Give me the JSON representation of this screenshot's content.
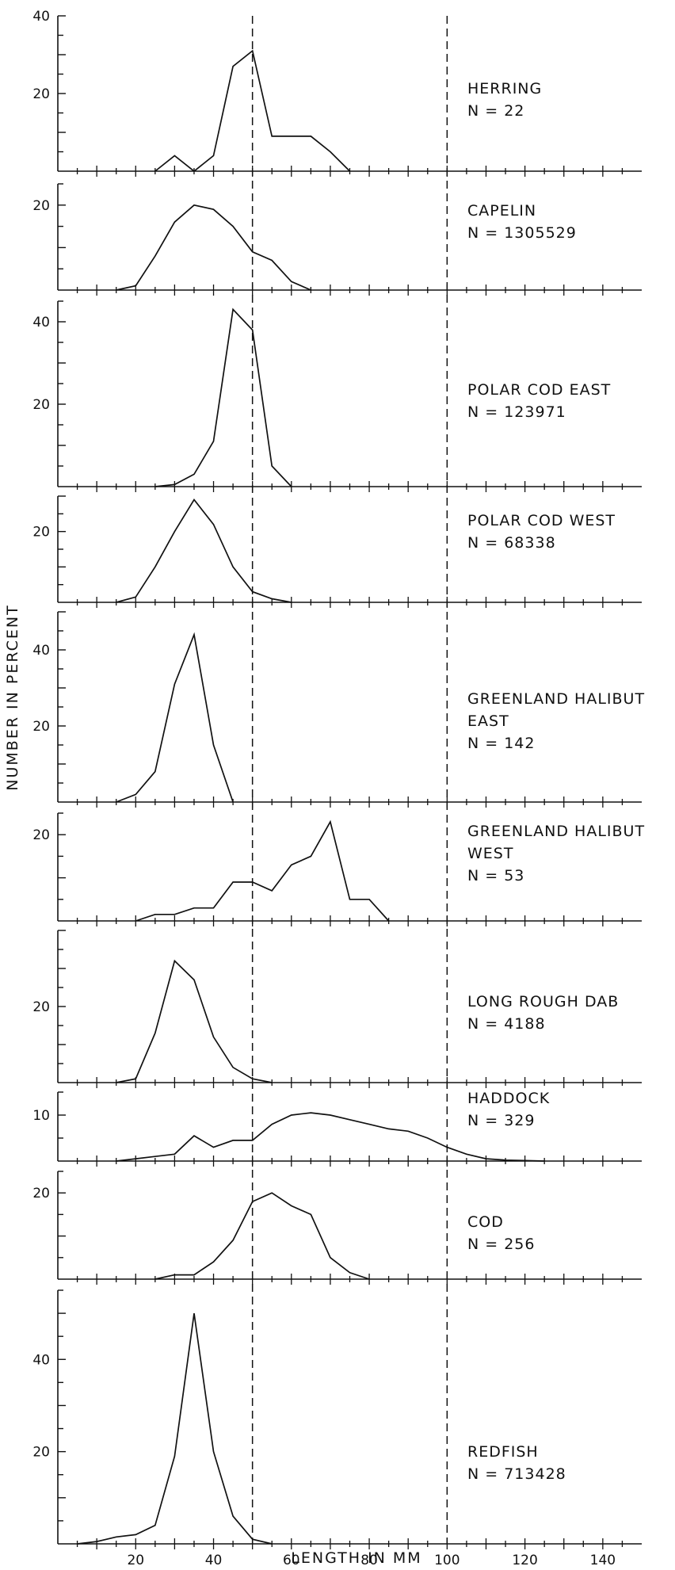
{
  "chart_data": {
    "type": "line",
    "xlabel": "LENGTH IN MM",
    "ylabel": "NUMBER IN PERCENT",
    "xlim": [
      0,
      150
    ],
    "x_ticks": [
      20,
      40,
      60,
      80,
      100,
      120,
      140
    ],
    "reference_lines_x": [
      50,
      100
    ],
    "grid": false,
    "panels": [
      {
        "label_lines": [
          "HERRING",
          "N = 22"
        ],
        "ylim": [
          0,
          40
        ],
        "y_ticks": [
          20,
          40
        ],
        "x": [
          25,
          30,
          35,
          40,
          45,
          50,
          55,
          60,
          65,
          70,
          75
        ],
        "y": [
          0,
          4,
          0,
          4,
          27,
          31,
          9,
          9,
          9,
          5,
          0
        ]
      },
      {
        "label_lines": [
          "CAPELIN",
          "N = 1305529"
        ],
        "ylim": [
          0,
          25
        ],
        "y_ticks": [
          20
        ],
        "x": [
          15,
          20,
          25,
          30,
          35,
          40,
          45,
          50,
          55,
          60,
          65
        ],
        "y": [
          0,
          1,
          8,
          16,
          20,
          19,
          15,
          9,
          7,
          2,
          0
        ]
      },
      {
        "label_lines": [
          "POLAR COD EAST",
          "N = 123971"
        ],
        "ylim": [
          0,
          45
        ],
        "y_ticks": [
          20,
          40
        ],
        "x": [
          25,
          30,
          35,
          40,
          45,
          50,
          55,
          60
        ],
        "y": [
          0,
          0.5,
          3,
          11,
          43,
          38,
          5,
          0
        ]
      },
      {
        "label_lines": [
          "POLAR COD WEST",
          "N = 68338"
        ],
        "ylim": [
          0,
          30
        ],
        "y_ticks": [
          20
        ],
        "x": [
          15,
          20,
          25,
          30,
          35,
          40,
          45,
          50,
          55,
          60
        ],
        "y": [
          0,
          1.5,
          10,
          20,
          29,
          22,
          10,
          3,
          1,
          0
        ]
      },
      {
        "label_lines": [
          "GREENLAND HALIBUT",
          "EAST",
          "N = 142"
        ],
        "ylim": [
          0,
          50
        ],
        "y_ticks": [
          20,
          40
        ],
        "x": [
          15,
          20,
          25,
          30,
          35,
          40,
          45
        ],
        "y": [
          0,
          2,
          8,
          31,
          44,
          15,
          0
        ]
      },
      {
        "label_lines": [
          "GREENLAND HALIBUT",
          "WEST",
          "N = 53"
        ],
        "ylim": [
          0,
          25
        ],
        "y_ticks": [
          20
        ],
        "x": [
          20,
          25,
          30,
          35,
          40,
          45,
          50,
          55,
          60,
          65,
          70,
          75,
          80,
          85
        ],
        "y": [
          0,
          1.5,
          1.5,
          3,
          3,
          9,
          9,
          7,
          13,
          15,
          23,
          5,
          5,
          0
        ]
      },
      {
        "label_lines": [
          "LONG ROUGH DAB",
          "N = 4188"
        ],
        "ylim": [
          0,
          40
        ],
        "y_ticks": [
          20
        ],
        "x": [
          15,
          20,
          25,
          30,
          35,
          40,
          45,
          50,
          55
        ],
        "y": [
          0,
          1,
          13,
          32,
          27,
          12,
          4,
          1,
          0
        ]
      },
      {
        "label_lines": [
          "HADDOCK",
          "N = 329"
        ],
        "ylim": [
          0,
          15
        ],
        "y_ticks": [
          10
        ],
        "x": [
          15,
          20,
          25,
          30,
          35,
          40,
          45,
          50,
          55,
          60,
          65,
          70,
          75,
          80,
          85,
          90,
          95,
          100,
          105,
          110,
          115,
          120,
          125
        ],
        "y": [
          0,
          0.5,
          1,
          1.5,
          5.5,
          3,
          4.5,
          4.5,
          8,
          10,
          10.5,
          10,
          9,
          8,
          7,
          6.5,
          5,
          3,
          1.5,
          0.5,
          0.2,
          0.1,
          0
        ]
      },
      {
        "label_lines": [
          "COD",
          "N = 256"
        ],
        "ylim": [
          0,
          25
        ],
        "y_ticks": [
          20
        ],
        "x": [
          25,
          30,
          35,
          40,
          45,
          50,
          55,
          60,
          65,
          70,
          75,
          80
        ],
        "y": [
          0,
          1,
          1,
          4,
          9,
          18,
          20,
          17,
          15,
          5,
          1.5,
          0
        ]
      },
      {
        "label_lines": [
          "REDFISH",
          "N = 713428"
        ],
        "ylim": [
          0,
          55
        ],
        "y_ticks": [
          20,
          40
        ],
        "x": [
          5,
          10,
          15,
          20,
          25,
          30,
          35,
          40,
          45,
          50,
          55
        ],
        "y": [
          0,
          0.5,
          1.5,
          2,
          4,
          19,
          50,
          20,
          6,
          1,
          0
        ]
      }
    ]
  }
}
